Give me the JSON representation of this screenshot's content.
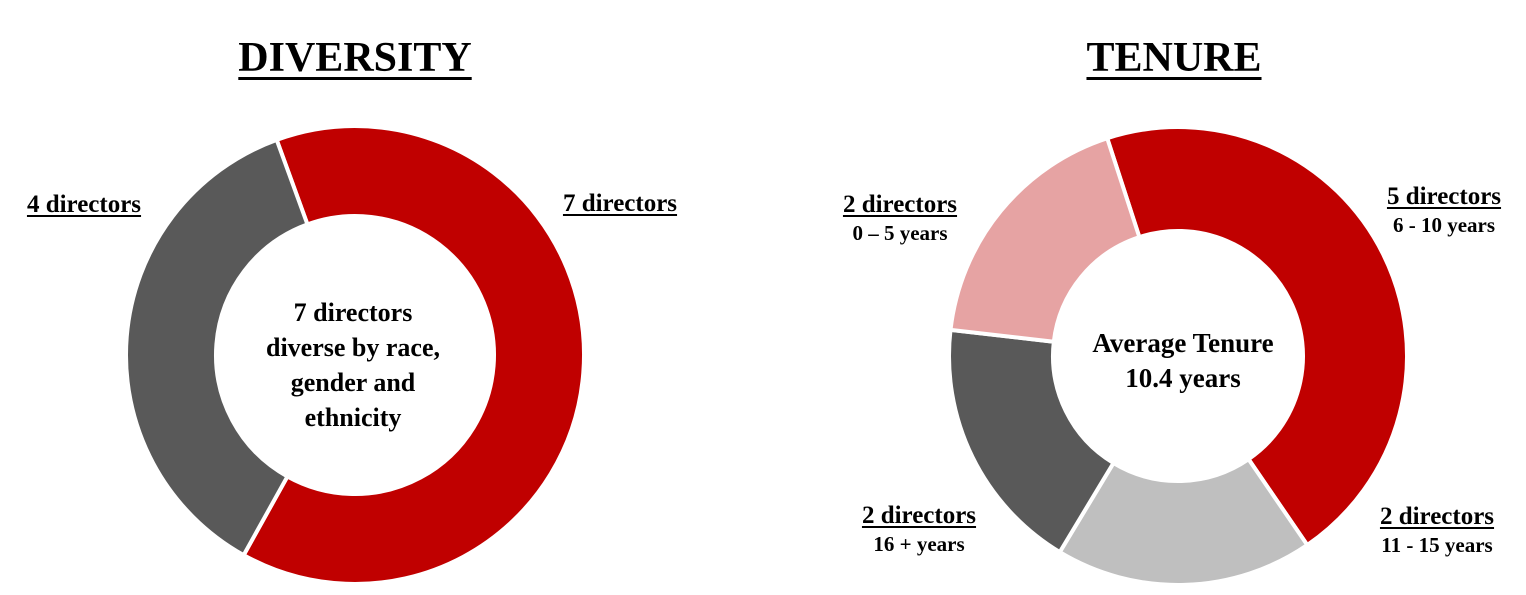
{
  "chart_data": [
    {
      "type": "pie",
      "variant": "donut",
      "title": "DIVERSITY",
      "center_text": [
        "7 directors",
        "diverse by race,",
        "gender and",
        "ethnicity"
      ],
      "slices": [
        {
          "label": "7 directors",
          "value": 7,
          "color": "#c00000"
        },
        {
          "label": "4 directors",
          "value": 4,
          "color": "#595959"
        }
      ],
      "start_angle_deg": -20
    },
    {
      "type": "pie",
      "variant": "donut",
      "title": "TENURE",
      "center_text": [
        "Average Tenure",
        "10.4 years"
      ],
      "slices": [
        {
          "label": "5 directors",
          "sublabel": "6 - 10 years",
          "value": 5,
          "color": "#c00000"
        },
        {
          "label": "2 directors",
          "sublabel": "11 - 15 years",
          "value": 2,
          "color": "#bfbfbf"
        },
        {
          "label": "2 directors",
          "sublabel": "16 + years",
          "value": 2,
          "color": "#595959"
        },
        {
          "label": "2 directors",
          "sublabel": "0 – 5 years",
          "value": 2,
          "color": "#e6a3a3"
        }
      ],
      "start_angle_deg": -18
    }
  ]
}
